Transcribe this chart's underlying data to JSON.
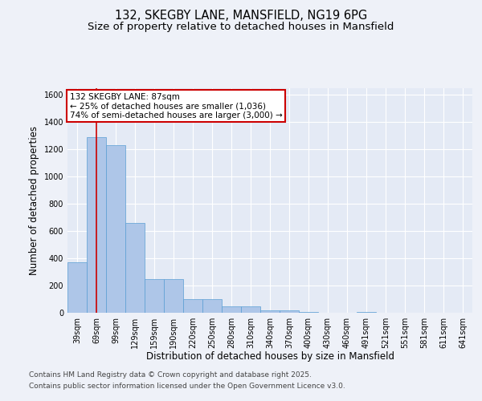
{
  "title_line1": "132, SKEGBY LANE, MANSFIELD, NG19 6PG",
  "title_line2": "Size of property relative to detached houses in Mansfield",
  "xlabel": "Distribution of detached houses by size in Mansfield",
  "ylabel": "Number of detached properties",
  "categories": [
    "39sqm",
    "69sqm",
    "99sqm",
    "129sqm",
    "159sqm",
    "190sqm",
    "220sqm",
    "250sqm",
    "280sqm",
    "310sqm",
    "340sqm",
    "370sqm",
    "400sqm",
    "430sqm",
    "460sqm",
    "491sqm",
    "521sqm",
    "551sqm",
    "581sqm",
    "611sqm",
    "641sqm"
  ],
  "values": [
    370,
    1290,
    1230,
    660,
    250,
    250,
    100,
    100,
    50,
    50,
    20,
    20,
    5,
    0,
    0,
    5,
    0,
    0,
    0,
    0,
    0
  ],
  "bar_color": "#aec6e8",
  "bar_edge_color": "#5a9ed4",
  "annotation_box_text": "132 SKEGBY LANE: 87sqm\n← 25% of detached houses are smaller (1,036)\n74% of semi-detached houses are larger (3,000) →",
  "vline_x": 1.0,
  "vline_color": "#cc0000",
  "box_color": "#cc0000",
  "footer_line1": "Contains HM Land Registry data © Crown copyright and database right 2025.",
  "footer_line2": "Contains public sector information licensed under the Open Government Licence v3.0.",
  "bg_color": "#eef1f8",
  "plot_bg_color": "#e4eaf5",
  "ylim": [
    0,
    1650
  ],
  "title_fontsize": 10.5,
  "subtitle_fontsize": 9.5,
  "axis_label_fontsize": 8.5,
  "tick_fontsize": 7,
  "footer_fontsize": 6.5,
  "annotation_fontsize": 7.5
}
